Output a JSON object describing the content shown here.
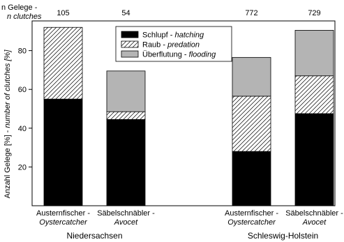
{
  "chart_data": {
    "type": "bar",
    "stacked": true,
    "title": "",
    "ylabel_main": "Anzahl Gelege [%] - ",
    "ylabel_italic": "number of clutches [%]",
    "ylim": [
      0,
      100
    ],
    "yticks": [
      20,
      40,
      60,
      80
    ],
    "n_label_line1": "n Gelege -",
    "n_label_line2": "n clutches",
    "legend_position": "top-center",
    "series": [
      {
        "name_de": "Schlupf - ",
        "name_en": "hatching",
        "color": "#000000",
        "pattern": "solid",
        "values": [
          55,
          44.5,
          28,
          47.5
        ]
      },
      {
        "name_de": "Raub - ",
        "name_en": "predation",
        "color": "#ffffff",
        "pattern": "hatched",
        "values": [
          37,
          4,
          28.5,
          19.5
        ]
      },
      {
        "name_de": "Überflutung - ",
        "name_en": "flooding",
        "color": "#b4b4b4",
        "pattern": "solid",
        "values": [
          0,
          21,
          20,
          23.5
        ]
      }
    ],
    "bars": [
      {
        "species_de": "Austernfischer - ",
        "species_en": "Oystercatcher",
        "n": "105"
      },
      {
        "species_de": "Säbelschnäbler - ",
        "species_en": "Avocet",
        "n": "54"
      },
      {
        "species_de": "Austernfischer - ",
        "species_en": "Oystercatcher",
        "n": "772"
      },
      {
        "species_de": "Säbelschnäbler - ",
        "species_en": "Avocet",
        "n": "729"
      }
    ],
    "regions": [
      {
        "name": "Niedersachsen",
        "bars": [
          0,
          1
        ]
      },
      {
        "name": "Schleswig-Holstein",
        "bars": [
          2,
          3
        ]
      }
    ]
  }
}
